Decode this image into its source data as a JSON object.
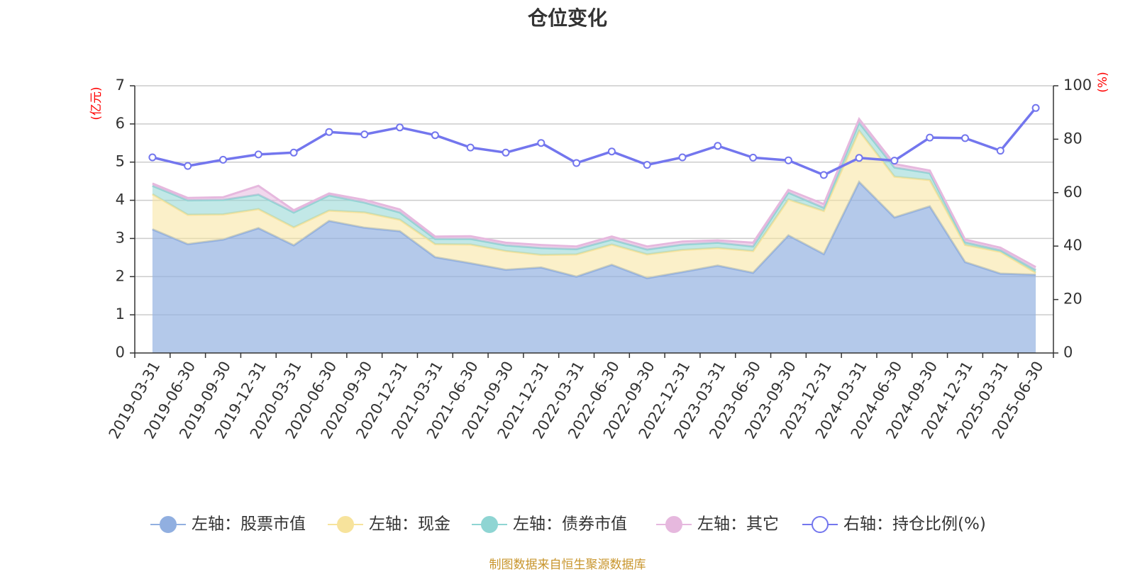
{
  "chart_data": {
    "type": "area",
    "title": "仓位变化",
    "source": "制图数据来自恒生聚源数据库",
    "left_axis": {
      "label": "(亿元)",
      "min": 0,
      "max": 7,
      "ticks": [
        0,
        1,
        2,
        3,
        4,
        5,
        6,
        7
      ]
    },
    "right_axis": {
      "label": "(%)",
      "min": 0,
      "max": 100,
      "ticks": [
        0,
        20,
        40,
        60,
        80,
        100
      ]
    },
    "x": [
      "2019-03-31",
      "2019-06-30",
      "2019-09-30",
      "2019-12-31",
      "2020-03-31",
      "2020-06-30",
      "2020-09-30",
      "2020-12-31",
      "2021-03-31",
      "2021-06-30",
      "2021-09-30",
      "2021-12-31",
      "2022-03-31",
      "2022-06-30",
      "2022-09-30",
      "2022-12-31",
      "2023-03-31",
      "2023-06-30",
      "2023-09-30",
      "2023-12-31",
      "2024-03-31",
      "2024-06-30",
      "2024-09-30",
      "2024-12-31",
      "2025-03-31",
      "2025-06-30"
    ],
    "grid": true,
    "legend_position": "bottom",
    "stacked_series": [
      {
        "name": "左轴：股票市值",
        "color": "#91afe0",
        "values": [
          3.24,
          2.85,
          2.97,
          3.27,
          2.82,
          3.46,
          3.28,
          3.19,
          2.51,
          2.35,
          2.18,
          2.24,
          2.0,
          2.31,
          1.96,
          2.12,
          2.29,
          2.1,
          3.08,
          2.59,
          4.48,
          3.55,
          3.84,
          2.38,
          2.08,
          2.05
        ]
      },
      {
        "name": "左轴：现金",
        "color": "#f7e39c",
        "values": [
          0.92,
          0.77,
          0.66,
          0.5,
          0.47,
          0.27,
          0.4,
          0.3,
          0.34,
          0.49,
          0.49,
          0.33,
          0.58,
          0.53,
          0.62,
          0.58,
          0.46,
          0.57,
          0.94,
          1.13,
          1.34,
          1.07,
          0.69,
          0.45,
          0.57,
          0.05
        ]
      },
      {
        "name": "左轴：债券市值",
        "color": "#8fd5d3",
        "values": [
          0.22,
          0.38,
          0.38,
          0.38,
          0.39,
          0.4,
          0.26,
          0.19,
          0.14,
          0.15,
          0.15,
          0.18,
          0.14,
          0.13,
          0.13,
          0.14,
          0.14,
          0.12,
          0.18,
          0.08,
          0.21,
          0.24,
          0.18,
          0.07,
          0.04,
          0.07
        ]
      },
      {
        "name": "左轴：其它",
        "color": "#e6b8de",
        "values": [
          0.06,
          0.06,
          0.07,
          0.23,
          0.06,
          0.05,
          0.07,
          0.08,
          0.06,
          0.07,
          0.07,
          0.08,
          0.07,
          0.08,
          0.08,
          0.08,
          0.06,
          0.1,
          0.07,
          0.1,
          0.1,
          0.09,
          0.07,
          0.07,
          0.07,
          0.08
        ]
      }
    ],
    "line_series": [
      {
        "name": "右轴：持仓比例(%)",
        "color": "#7376ee",
        "axis": "right",
        "values": [
          73.2,
          70.0,
          72.3,
          74.3,
          75.0,
          82.7,
          81.8,
          84.4,
          81.5,
          76.9,
          75.0,
          78.6,
          71.1,
          75.4,
          70.4,
          73.2,
          77.5,
          73.1,
          72.1,
          66.6,
          73.0,
          72.0,
          80.6,
          80.4,
          75.7,
          91.7
        ]
      }
    ]
  }
}
